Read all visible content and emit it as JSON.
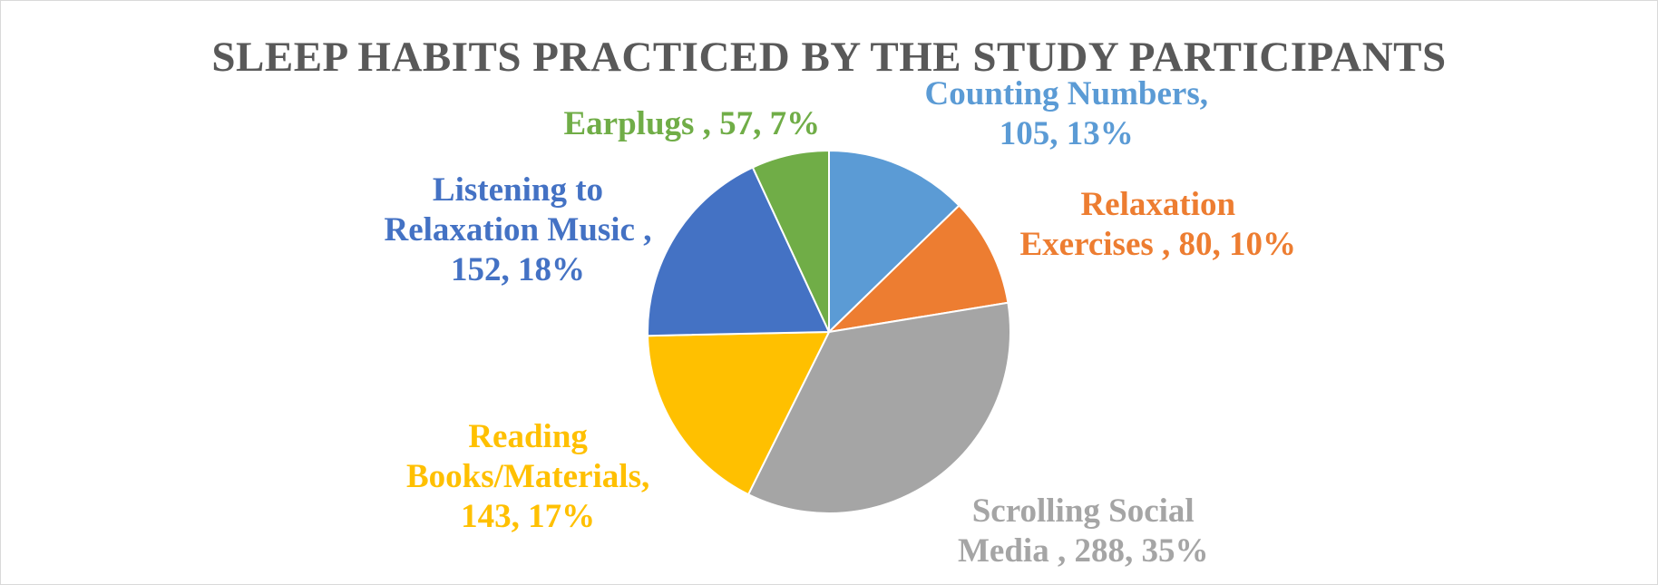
{
  "chart_data": {
    "type": "pie",
    "title": "SLEEP HABITS PRACTICED BY THE STUDY PARTICIPANTS",
    "slices": [
      {
        "name": "Counting Numbers",
        "value": 105,
        "percent": "13%",
        "color": "#5b9bd5",
        "label_lines": [
          "Counting Numbers,",
          "105, 13%"
        ]
      },
      {
        "name": "Relaxation Exercises",
        "value": 80,
        "percent": "10%",
        "color": "#ed7d31",
        "label_lines": [
          "Relaxation",
          "Exercises , 80, 10%"
        ]
      },
      {
        "name": "Scrolling Social Media",
        "value": 288,
        "percent": "35%",
        "color": "#a5a5a5",
        "label_lines": [
          "Scrolling Social",
          "Media , 288, 35%"
        ]
      },
      {
        "name": "Reading Books/Materials",
        "value": 143,
        "percent": "17%",
        "color": "#ffc000",
        "label_lines": [
          "Reading",
          "Books/Materials,",
          "143, 17%"
        ]
      },
      {
        "name": "Listening to Relaxation Music",
        "value": 152,
        "percent": "18%",
        "color": "#4472c4",
        "label_lines": [
          "Listening to",
          "Relaxation Music ,",
          "152, 18%"
        ]
      },
      {
        "name": "Earplugs",
        "value": 57,
        "percent": "7%",
        "color": "#70ad47",
        "label_lines": [
          "Earplugs , 57, 7%"
        ]
      }
    ]
  }
}
